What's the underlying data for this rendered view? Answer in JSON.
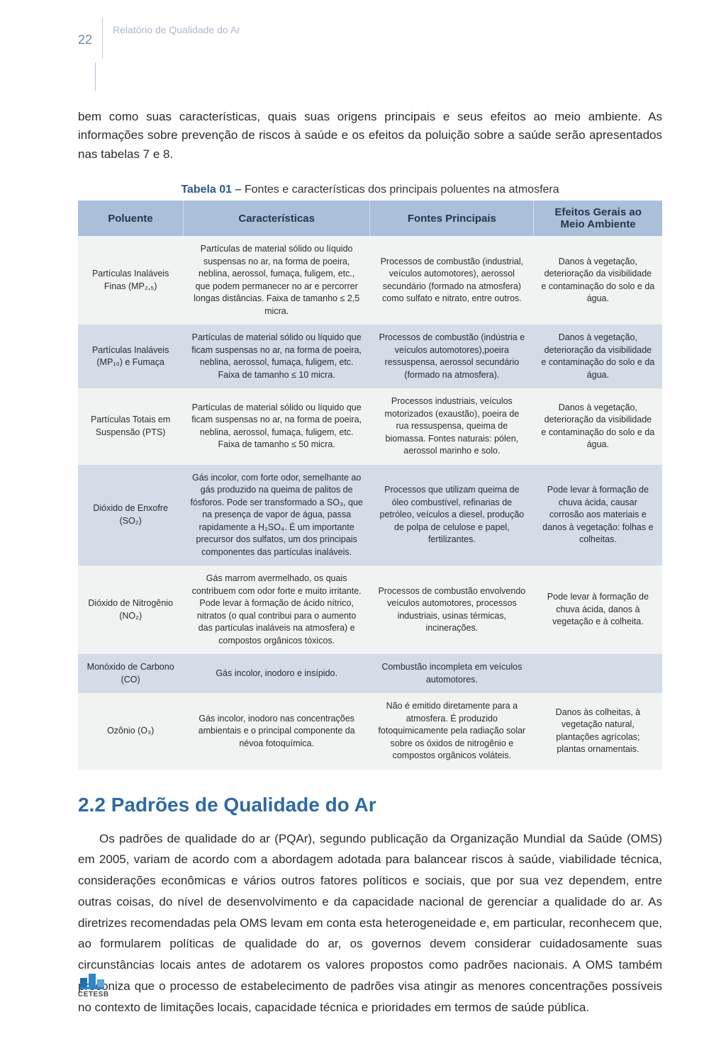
{
  "header": {
    "page_number": "22",
    "doc_title": "Relatório de Qualidade do Ar"
  },
  "intro_paragraph": "bem como suas características, quais suas origens principais e seus efeitos ao meio ambiente. As informações sobre prevenção de riscos à saúde e os efeitos da poluição sobre a saúde serão apresentados nas tabelas 7 e 8.",
  "table": {
    "caption_label": "Tabela 01 –",
    "caption_text": " Fontes e características dos principais poluentes na atmosfera",
    "columns": [
      "Poluente",
      "Características",
      "Fontes Principais",
      "Efeitos Gerais ao Meio Ambiente"
    ],
    "column_widths_pct": [
      18,
      32,
      28,
      22
    ],
    "header_bg": "#aabfd9",
    "header_fg": "#263646",
    "row_colors": [
      "#f1f2f2",
      "#d3dce7"
    ],
    "rows": [
      {
        "pollutant": "Partículas Inaláveis Finas (MP₂,₅)",
        "characteristics": "Partículas de material sólido ou líquido suspensas no ar, na forma de poeira, neblina, aerossol, fumaça, fuligem, etc., que podem permanecer no ar e percorrer longas distâncias. Faixa de tamanho ≤ 2,5 micra.",
        "sources": "Processos de combustão (industrial, veículos automotores), aerossol secundário (formado na atmosfera) como sulfato e nitrato, entre outros.",
        "effects": "Danos à vegetação, deterioração da visibilidade e contaminação do solo e  da água."
      },
      {
        "pollutant": "Partículas Inaláveis (MP₁₀) e Fumaça",
        "characteristics": "Partículas de material sólido ou líquido que ficam suspensas no ar, na forma de poeira, neblina, aerossol, fumaça, fuligem, etc. Faixa de tamanho ≤ 10 micra.",
        "sources": "Processos de combustão (indústria e veículos automotores),poeira ressuspensa, aerossol secundário (formado na atmosfera).",
        "effects": "Danos à vegetação, deterioração da visibilidade e contaminação do solo e da água."
      },
      {
        "pollutant": "Partículas Totais em Suspensão (PTS)",
        "characteristics": "Partículas de material sólido ou líquido que ficam suspensas no ar, na forma de poeira, neblina, aerossol, fumaça, fuligem, etc. Faixa de tamanho ≤ 50 micra.",
        "sources": "Processos industriais, veículos motorizados (exaustão), poeira de rua ressuspensa, queima de biomassa. Fontes naturais: pólen,  aerossol marinho e solo.",
        "effects": "Danos à vegetação, deterioração da visibilidade e contaminação do solo e da água."
      },
      {
        "pollutant": "Dióxido de Enxofre (SO₂)",
        "characteristics": "Gás incolor, com forte odor, semelhante ao gás produzido na queima de palitos de fósforos. Pode ser transformado a SO₃, que na presença de vapor de água, passa rapidamente a H₂SO₄. É um importante precursor dos sulfatos, um dos principais componentes das partículas inaláveis.",
        "sources": "Processos que utilizam queima de óleo combustível, refinarias de petróleo, veículos a diesel, produção de polpa de celulose e papel, fertilizantes.",
        "effects": "Pode levar à formação de chuva ácida, causar corrosão aos materiais e danos à vegetação: folhas e colheitas."
      },
      {
        "pollutant": "Dióxido de Nitrogênio (NO₂)",
        "characteristics": "Gás marrom avermelhado, os quais contribuem com odor forte e muito irritante. Pode levar à formação de ácido nítrico, nitratos (o qual contribui para o aumento das partículas inaláveis na atmosfera) e compostos orgânicos tóxicos.",
        "sources": "Processos de combustão envolvendo veículos automotores, processos industriais, usinas térmicas, incinerações.",
        "effects": "Pode levar à formação de chuva ácida, danos à vegetação e à colheita."
      },
      {
        "pollutant": "Monóxido de Carbono (CO)",
        "characteristics": "Gás incolor, inodoro e insípido.",
        "sources": "Combustão incompleta em veículos automotores.",
        "effects": ""
      },
      {
        "pollutant": "Ozônio (O₃)",
        "characteristics": "Gás incolor, inodoro nas concentrações ambientais e o principal componente da névoa fotoquímica.",
        "sources": "Não é emitido diretamente para a atmosfera. É produzido fotoquimicamente pela radiação solar sobre os óxidos de nitrogênio e compostos orgânicos voláteis.",
        "effects": "Danos às colheitas, à vegetação natural, plantações agrícolas; plantas ornamentais."
      }
    ]
  },
  "section": {
    "heading": "2.2 Padrões de Qualidade do Ar",
    "paragraph": "Os padrões de qualidade do ar (PQAr), segundo publicação da Organização Mundial da Saúde (OMS) em 2005, variam de acordo com a abordagem adotada para balancear riscos à saúde, viabilidade técnica, considerações econômicas e vários outros fatores políticos e sociais, que por sua vez dependem, entre outras coisas, do nível de desenvolvimento e da capacidade nacional de gerenciar a qualidade do ar. As diretrizes recomendadas pela OMS levam em conta esta heterogeneidade e, em particular, reconhecem que, ao formularem políticas de qualidade do ar, os governos devem considerar cuidadosamente suas circunstâncias locais antes de adotarem os valores propostos como padrões nacionais. A OMS também preconiza que o processo de estabelecimento de padrões visa atingir as menores concentrações possíveis no contexto de limitações locais, capacidade técnica e prioridades em termos de saúde pública."
  },
  "footer": {
    "org": "CETESB"
  },
  "styling": {
    "heading_color": "#2e6aa3",
    "body_text_color": "#2b2b2b",
    "page_number_color": "#6e8aa8",
    "header_title_color": "#adb9c6",
    "body_font_size_pt": 12.5,
    "heading_font_size_pt": 21,
    "table_font_size_pt": 9,
    "background_color": "#ffffff"
  }
}
